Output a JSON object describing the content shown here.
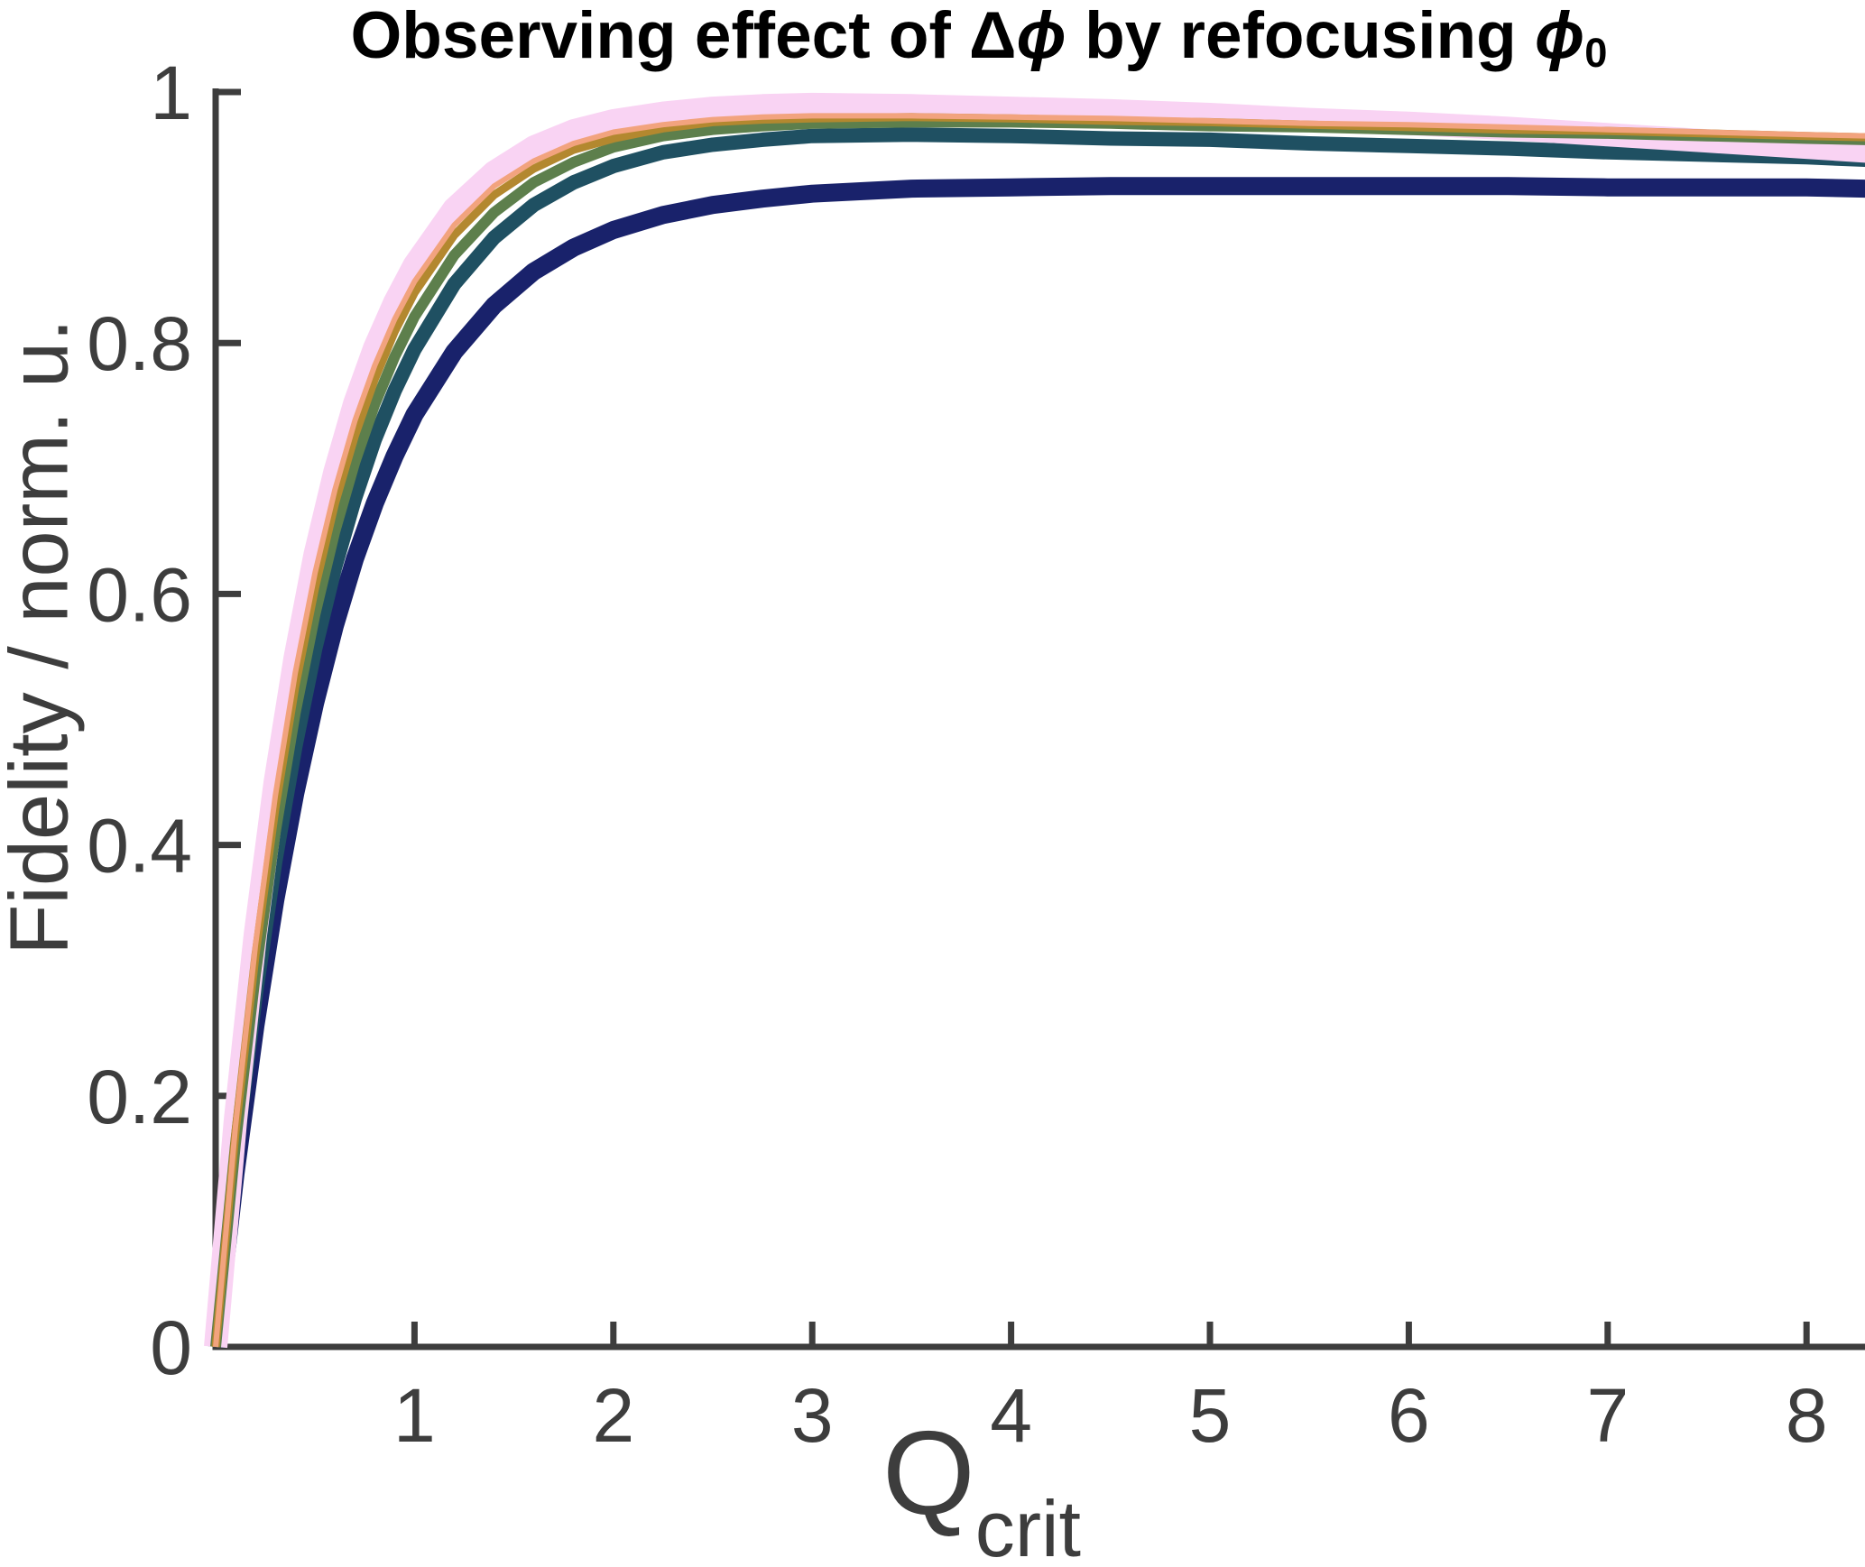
{
  "chart_data": {
    "type": "line",
    "title": {
      "part1": "Observing effect of ",
      "delta": "Δ",
      "phi1": "ϕ",
      "part2": " by refocusing ",
      "phi2": "ϕ",
      "subscript": "0"
    },
    "x_axis": {
      "label_main": "Q",
      "label_sub": "crit",
      "lim": [
        0,
        8.3
      ],
      "ticks": [
        {
          "value": 1,
          "label": "1"
        },
        {
          "value": 2,
          "label": "2"
        },
        {
          "value": 3,
          "label": "3"
        },
        {
          "value": 4,
          "label": "4"
        },
        {
          "value": 5,
          "label": "5"
        },
        {
          "value": 6,
          "label": "6"
        },
        {
          "value": 7,
          "label": "7"
        },
        {
          "value": 8,
          "label": "8"
        }
      ]
    },
    "y_axis": {
      "label": "Fidelity / norm. u.",
      "lim": [
        0,
        1
      ],
      "ticks": [
        {
          "value": 0,
          "label": "0"
        },
        {
          "value": 0.2,
          "label": "0.2"
        },
        {
          "value": 0.4,
          "label": "0.4"
        },
        {
          "value": 0.6,
          "label": "0.6"
        },
        {
          "value": 0.8,
          "label": "0.8"
        },
        {
          "value": 1,
          "label": "1"
        }
      ]
    },
    "grid": false,
    "legend": null,
    "axis_color": "#3d3d3d",
    "title_color": "#000000",
    "x": [
      0,
      0.1,
      0.2,
      0.3,
      0.4,
      0.5,
      0.6,
      0.7,
      0.8,
      0.9,
      1.0,
      1.2,
      1.4,
      1.6,
      1.8,
      2.0,
      2.25,
      2.5,
      2.75,
      3.0,
      3.5,
      4.0,
      4.5,
      5.0,
      5.5,
      6.0,
      6.5,
      7.0,
      7.5,
      8.0,
      8.3
    ],
    "series": [
      {
        "name": "navy",
        "color": "#19226b",
        "width": 20,
        "y": [
          0,
          0.138,
          0.256,
          0.356,
          0.441,
          0.513,
          0.575,
          0.628,
          0.672,
          0.71,
          0.743,
          0.793,
          0.83,
          0.857,
          0.876,
          0.89,
          0.902,
          0.91,
          0.915,
          0.919,
          0.923,
          0.924,
          0.925,
          0.925,
          0.925,
          0.925,
          0.925,
          0.924,
          0.924,
          0.924,
          0.923
        ]
      },
      {
        "name": "teal",
        "color": "#1f5062",
        "width": 16,
        "y": [
          0,
          0.151,
          0.279,
          0.387,
          0.478,
          0.556,
          0.621,
          0.676,
          0.723,
          0.762,
          0.795,
          0.847,
          0.884,
          0.91,
          0.928,
          0.941,
          0.952,
          0.958,
          0.962,
          0.965,
          0.966,
          0.965,
          0.963,
          0.962,
          0.959,
          0.957,
          0.955,
          0.952,
          0.95,
          0.948,
          0.946
        ]
      },
      {
        "name": "pink",
        "color": "#f9d3f3",
        "width": 26,
        "y": [
          0,
          0.181,
          0.329,
          0.45,
          0.549,
          0.631,
          0.697,
          0.752,
          0.796,
          0.832,
          0.862,
          0.907,
          0.936,
          0.956,
          0.969,
          0.977,
          0.983,
          0.987,
          0.989,
          0.99,
          0.989,
          0.987,
          0.985,
          0.982,
          0.978,
          0.975,
          0.971,
          0.966,
          0.961,
          0.956,
          0.953
        ]
      },
      {
        "name": "green",
        "color": "#5d7f4c",
        "width": 12,
        "y": [
          0,
          0.162,
          0.297,
          0.41,
          0.505,
          0.584,
          0.65,
          0.705,
          0.751,
          0.789,
          0.821,
          0.87,
          0.904,
          0.928,
          0.944,
          0.956,
          0.965,
          0.97,
          0.973,
          0.975,
          0.976,
          0.976,
          0.975,
          0.973,
          0.972,
          0.97,
          0.968,
          0.967,
          0.965,
          0.963,
          0.962
        ]
      },
      {
        "name": "gold",
        "color": "#b3882f",
        "width": 9,
        "y": [
          0,
          0.171,
          0.312,
          0.429,
          0.526,
          0.605,
          0.672,
          0.726,
          0.771,
          0.809,
          0.84,
          0.886,
          0.918,
          0.939,
          0.954,
          0.963,
          0.971,
          0.976,
          0.978,
          0.979,
          0.98,
          0.979,
          0.977,
          0.976,
          0.974,
          0.972,
          0.97,
          0.969,
          0.967,
          0.965,
          0.964
        ]
      },
      {
        "name": "salmon",
        "color": "#f2a37e",
        "width": 6,
        "y": [
          0,
          0.176,
          0.32,
          0.439,
          0.537,
          0.617,
          0.683,
          0.738,
          0.782,
          0.819,
          0.849,
          0.894,
          0.925,
          0.945,
          0.959,
          0.968,
          0.974,
          0.978,
          0.98,
          0.981,
          0.981,
          0.98,
          0.979,
          0.977,
          0.975,
          0.974,
          0.972,
          0.97,
          0.968,
          0.966,
          0.965
        ]
      }
    ]
  }
}
